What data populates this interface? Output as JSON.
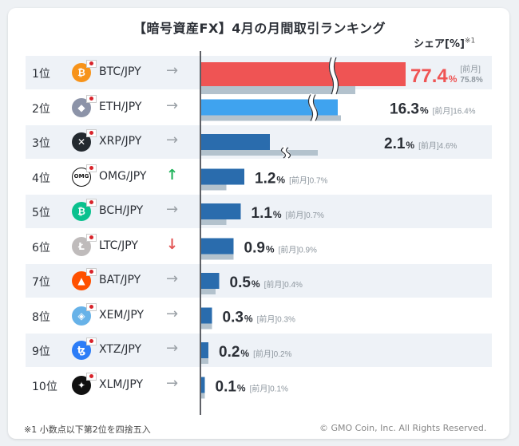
{
  "title": "【暗号資産FX】4月の月間取引ランキング",
  "share_header": "シェア[%]",
  "share_header_note": "※1",
  "footnote": "※1  小数点以下第2位を四捨五入",
  "copyright": "© GMO Coin, Inc. All Rights Reserved.",
  "prev_label": "[前月]",
  "unit": "%",
  "colors": {
    "top": "#ef5454",
    "second": "#3fa3ef",
    "rest": "#2a6cad",
    "prev": "#b3c2cd",
    "up": "#21b35b",
    "down": "#e35757",
    "neutral": "#9aa0a6"
  },
  "rows": [
    {
      "rank": "1位",
      "pair": "BTC/JPY",
      "icon": "btc-icon",
      "icon_color": "#f7931a",
      "glyph": "₿",
      "trend": "→",
      "trend_type": "flat"
    },
    {
      "rank": "2位",
      "pair": "ETH/JPY",
      "icon": "eth-icon",
      "icon_color": "#8c93a8",
      "glyph": "◆",
      "trend": "→",
      "trend_type": "flat"
    },
    {
      "rank": "3位",
      "pair": "XRP/JPY",
      "icon": "xrp-icon",
      "icon_color": "#23292f",
      "glyph": "✕",
      "trend": "→",
      "trend_type": "flat"
    },
    {
      "rank": "4位",
      "pair": "OMG/JPY",
      "icon": "omg-icon",
      "icon_color": "#1a1a1a",
      "glyph": "OMG",
      "trend": "↑",
      "trend_type": "up"
    },
    {
      "rank": "5位",
      "pair": "BCH/JPY",
      "icon": "bch-icon",
      "icon_color": "#0ac18e",
      "glyph": "₿",
      "trend": "→",
      "trend_type": "flat"
    },
    {
      "rank": "6位",
      "pair": "LTC/JPY",
      "icon": "ltc-icon",
      "icon_color": "#bfbbbb",
      "glyph": "Ł",
      "trend": "↓",
      "trend_type": "down"
    },
    {
      "rank": "7位",
      "pair": "BAT/JPY",
      "icon": "bat-icon",
      "icon_color": "#ff5000",
      "glyph": "▲",
      "trend": "→",
      "trend_type": "flat"
    },
    {
      "rank": "8位",
      "pair": "XEM/JPY",
      "icon": "xem-icon",
      "icon_color": "#67b2e8",
      "glyph": "◈",
      "trend": "→",
      "trend_type": "flat"
    },
    {
      "rank": "9位",
      "pair": "XTZ/JPY",
      "icon": "xtz-icon",
      "icon_color": "#2c7df7",
      "glyph": "ꜩ",
      "trend": "→",
      "trend_type": "flat"
    },
    {
      "rank": "10位",
      "pair": "XLM/JPY",
      "icon": "xlm-icon",
      "icon_color": "#111111",
      "glyph": "✦",
      "trend": "→",
      "trend_type": "flat"
    }
  ],
  "chart_data": {
    "type": "bar",
    "orientation": "horizontal",
    "title": "【暗号資産FX】4月の月間取引ランキング",
    "categories": [
      "BTC/JPY",
      "ETH/JPY",
      "XRP/JPY",
      "OMG/JPY",
      "BCH/JPY",
      "LTC/JPY",
      "BAT/JPY",
      "XEM/JPY",
      "XTZ/JPY",
      "XLM/JPY"
    ],
    "series": [
      {
        "name": "",
        "values": [
          77.4,
          16.3,
          2.1,
          1.2,
          1.1,
          0.9,
          0.5,
          0.3,
          0.2,
          0.1
        ]
      },
      {
        "name": "[前月]",
        "values": [
          75.8,
          16.4,
          4.6,
          0.7,
          0.7,
          0.9,
          0.4,
          0.3,
          0.2,
          0.1
        ]
      }
    ],
    "value_labels": [
      "77.4",
      "16.3",
      "2.1",
      "1.2",
      "1.1",
      "0.9",
      "0.5",
      "0.3",
      "0.2",
      "0.1"
    ],
    "prev_labels": [
      "75.8",
      "16.4",
      "4.6",
      "0.7",
      "0.7",
      "0.9",
      "0.4",
      "0.3",
      "0.2",
      "0.1"
    ],
    "axis_breaks": [
      "BTC/JPY",
      "ETH/JPY",
      "XRP/JPY"
    ],
    "grid": false
  }
}
